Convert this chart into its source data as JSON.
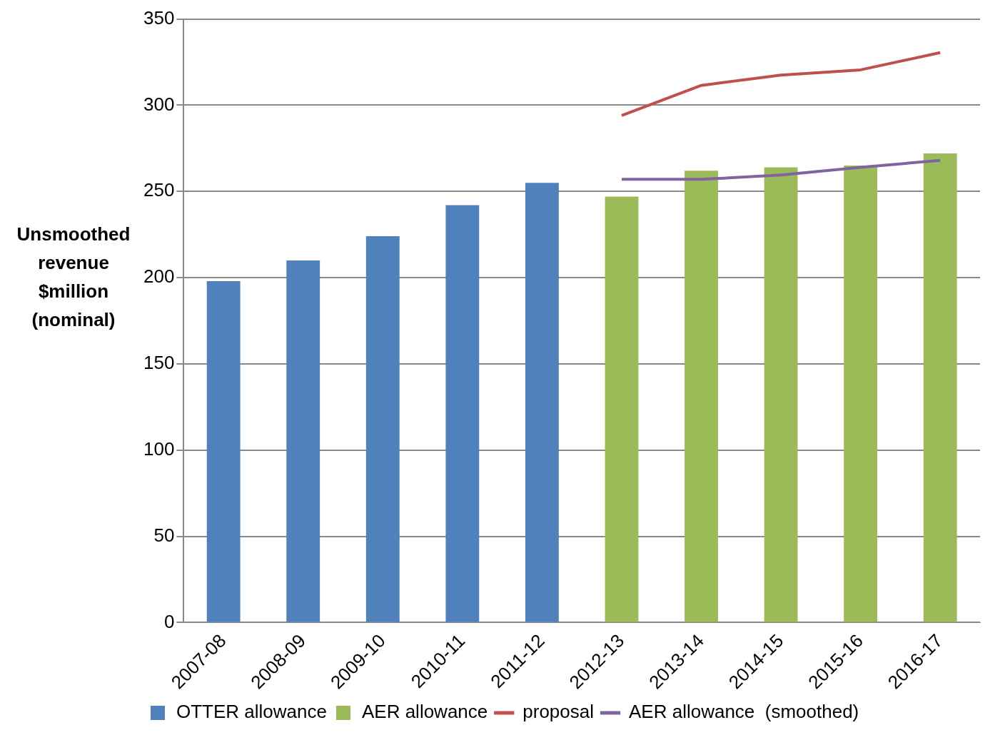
{
  "chart_data": {
    "type": "bar",
    "ylabel": "Unsmoothed revenue $million (nominal)",
    "categories": [
      "2007-08",
      "2008-09",
      "2009-10",
      "2010-11",
      "2011-12",
      "2012-13",
      "2013-14",
      "2014-15",
      "2015-16",
      "2016-17"
    ],
    "series": [
      {
        "name": "OTTER allowance",
        "color": "#4f81bd",
        "values": [
          198,
          210,
          224,
          242,
          255,
          null,
          null,
          null,
          null,
          null
        ]
      },
      {
        "name": "AER allowance",
        "color": "#9bbb59",
        "values": [
          null,
          null,
          null,
          null,
          null,
          247,
          262,
          264,
          265,
          272
        ]
      },
      {
        "name": "proposal",
        "type": "line",
        "color": "#c0504d",
        "values": [
          null,
          null,
          null,
          null,
          null,
          294,
          311.5,
          317.5,
          320.5,
          330.5
        ]
      },
      {
        "name": "AER allowance  (smoothed)",
        "type": "line",
        "color": "#8064a2",
        "values": [
          null,
          null,
          null,
          null,
          null,
          257,
          257,
          259.5,
          264,
          268
        ]
      }
    ],
    "ylim": [
      0,
      350
    ],
    "yticks": [
      0,
      50,
      100,
      150,
      200,
      250,
      300,
      350
    ],
    "grid": "y",
    "legend": "bottom",
    "marker": "none",
    "line_style": "solid"
  }
}
